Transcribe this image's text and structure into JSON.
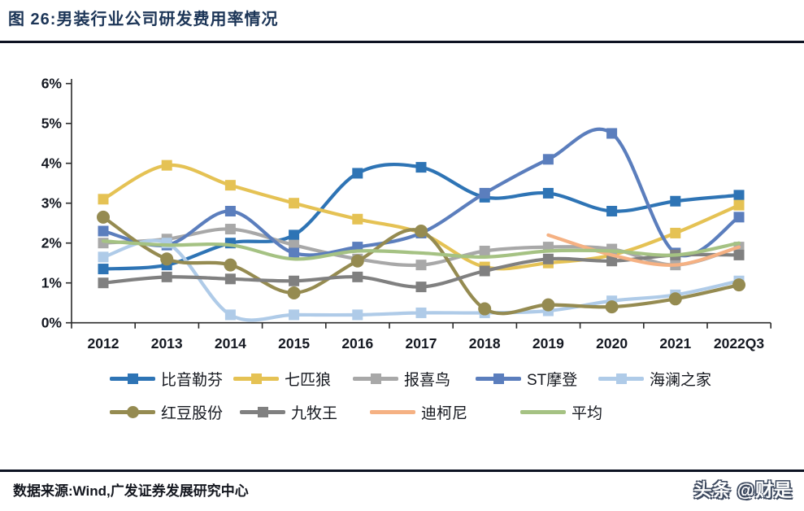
{
  "header": {
    "title": "图 26:男装行业公司研发费用率情况"
  },
  "footer": {
    "source": "数据来源:Wind,广发证券发展研究中心",
    "watermark": "头条 @财是"
  },
  "colors": {
    "title_navy": "#1C3557",
    "axis_line": "#2b2b2b",
    "axis_text": "#141821",
    "divider": "#0d1322"
  },
  "chart_data": {
    "type": "line",
    "title": "男装行业公司研发费用率情况",
    "xlabel": "",
    "ylabel": "",
    "unit": "%",
    "ylim": [
      0,
      6
    ],
    "ytick_step": 1,
    "ytick_labels": [
      "0%",
      "1%",
      "2%",
      "3%",
      "4%",
      "5%",
      "6%"
    ],
    "grid": false,
    "smoothed_lines": true,
    "legend_position": "bottom",
    "categories": [
      "2012",
      "2013",
      "2014",
      "2015",
      "2016",
      "2017",
      "2018",
      "2019",
      "2020",
      "2021",
      "2022Q3"
    ],
    "series": [
      {
        "name": "比音勒芬",
        "color": "#2E74B5",
        "marker": "square",
        "values": [
          1.35,
          1.45,
          2.0,
          2.2,
          3.75,
          3.9,
          3.15,
          3.25,
          2.8,
          3.05,
          3.2
        ]
      },
      {
        "name": "七匹狼",
        "color": "#E5C254",
        "marker": "square",
        "values": [
          3.1,
          3.95,
          3.45,
          3.0,
          2.6,
          2.25,
          1.4,
          1.5,
          1.7,
          2.25,
          2.95
        ]
      },
      {
        "name": "报喜鸟",
        "color": "#A8A8A8",
        "marker": "square",
        "values": [
          2.0,
          2.1,
          2.35,
          1.95,
          1.6,
          1.45,
          1.8,
          1.9,
          1.85,
          1.45,
          1.9
        ]
      },
      {
        "name": "ST摩登",
        "color": "#5B7EBD",
        "marker": "square",
        "values": [
          2.3,
          1.95,
          2.8,
          1.75,
          1.9,
          2.25,
          3.25,
          4.1,
          4.75,
          1.75,
          2.65
        ]
      },
      {
        "name": "海澜之家",
        "color": "#AFCBE8",
        "marker": "square",
        "values": [
          1.65,
          2.0,
          0.2,
          0.2,
          0.2,
          0.25,
          0.25,
          0.3,
          0.55,
          0.7,
          1.05
        ]
      },
      {
        "name": "红豆股份",
        "color": "#958B51",
        "marker": "circle",
        "values": [
          2.65,
          1.6,
          1.45,
          0.75,
          1.55,
          2.3,
          0.35,
          0.45,
          0.4,
          0.6,
          0.95
        ]
      },
      {
        "name": "九牧王",
        "color": "#808080",
        "marker": "square",
        "values": [
          1.0,
          1.15,
          1.1,
          1.05,
          1.15,
          0.9,
          1.3,
          1.6,
          1.55,
          1.7,
          1.7
        ]
      },
      {
        "name": "迪柯尼",
        "color": "#F5B183",
        "marker": "none",
        "values": [
          null,
          null,
          null,
          null,
          null,
          null,
          null,
          2.2,
          1.7,
          1.45,
          1.9
        ]
      },
      {
        "name": "平均",
        "color": "#A5C283",
        "marker": "none",
        "values": [
          2.05,
          1.95,
          1.95,
          1.6,
          1.8,
          1.75,
          1.65,
          1.8,
          1.8,
          1.7,
          2.0
        ]
      }
    ]
  }
}
